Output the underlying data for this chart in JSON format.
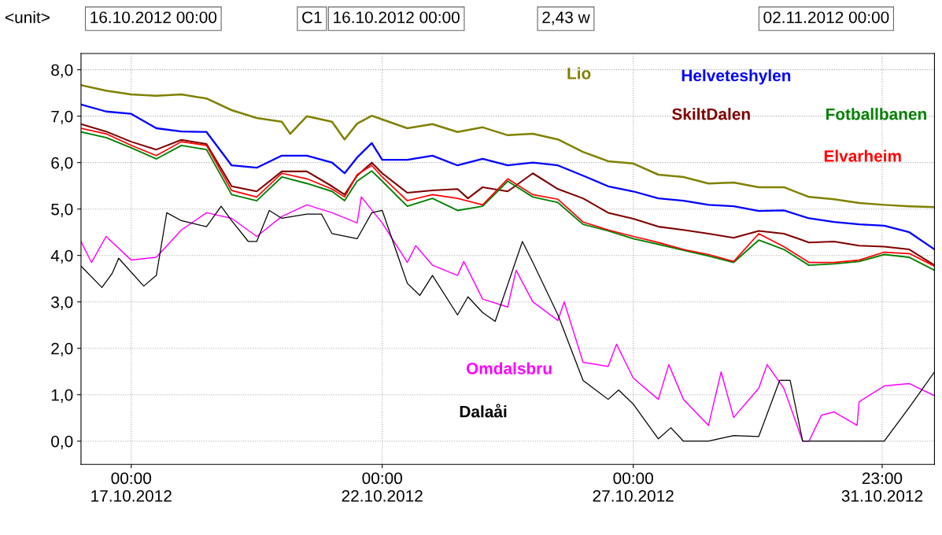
{
  "chart_data": {
    "type": "line",
    "ylabel": "<unit>",
    "annotations": [
      "16.10.2012 00:00",
      "C1",
      "16.10.2012 00:00",
      "2,43 w",
      "02.11.2012 00:00"
    ],
    "xlim": [
      "2012-10-16T00:00",
      "2012-11-02T00:00"
    ],
    "xticks": [
      {
        "value": "2012-10-17T00:00",
        "label": "00:00\n17.10.2012"
      },
      {
        "value": "2012-10-22T00:00",
        "label": "00:00\n22.10.2012"
      },
      {
        "value": "2012-10-27T00:00",
        "label": "00:00\n27.10.2012"
      },
      {
        "value": "2012-10-31T23:00",
        "label": "23:00\n31.10.2012"
      }
    ],
    "ylim": [
      -0.5,
      8.35
    ],
    "yticks": [
      {
        "value": 0,
        "label": "0,0"
      },
      {
        "value": 1,
        "label": "1,0"
      },
      {
        "value": 2,
        "label": "2,0"
      },
      {
        "value": 3,
        "label": "3,0"
      },
      {
        "value": 4,
        "label": "4,0"
      },
      {
        "value": 5,
        "label": "5,0"
      },
      {
        "value": 6,
        "label": "6,0"
      },
      {
        "value": 7,
        "label": "7,0"
      },
      {
        "value": 8,
        "label": "8,0"
      }
    ],
    "grid": true,
    "legend": false,
    "series": [
      {
        "name": "Lio",
        "color": "#808000",
        "x": [
          "2012-10-16T00:00",
          "2012-10-16T12:00",
          "2012-10-17T00:00",
          "2012-10-17T12:00",
          "2012-10-18T00:00",
          "2012-10-18T12:00",
          "2012-10-19T00:00",
          "2012-10-19T12:00",
          "2012-10-20T00:00",
          "2012-10-20T04:00",
          "2012-10-20T12:00",
          "2012-10-21T00:00",
          "2012-10-21T06:00",
          "2012-10-21T12:00",
          "2012-10-21T19:00",
          "2012-10-22T00:00",
          "2012-10-22T12:00",
          "2012-10-23T00:00",
          "2012-10-23T12:00",
          "2012-10-24T00:00",
          "2012-10-24T12:00",
          "2012-10-25T00:00",
          "2012-10-25T12:00",
          "2012-10-26T00:00",
          "2012-10-26T12:00",
          "2012-10-27T00:00",
          "2012-10-27T12:00",
          "2012-10-28T00:00",
          "2012-10-28T12:00",
          "2012-10-29T00:00",
          "2012-10-29T12:00",
          "2012-10-30T00:00",
          "2012-10-30T12:00",
          "2012-10-31T00:00",
          "2012-10-31T12:00",
          "2012-11-01T00:00",
          "2012-11-01T12:00",
          "2012-11-02T00:00"
        ],
        "values": [
          7.67,
          7.55,
          7.47,
          7.44,
          7.47,
          7.38,
          7.13,
          6.96,
          6.88,
          6.62,
          7.0,
          6.88,
          6.5,
          6.84,
          7.01,
          6.93,
          6.74,
          6.83,
          6.66,
          6.76,
          6.59,
          6.62,
          6.5,
          6.23,
          6.03,
          5.98,
          5.74,
          5.69,
          5.55,
          5.57,
          5.47,
          5.47,
          5.26,
          5.21,
          5.13,
          5.09,
          5.06,
          5.04
        ]
      },
      {
        "name": "Helveteshylen",
        "color": "#0000ff",
        "x": [
          "2012-10-16T00:00",
          "2012-10-16T12:00",
          "2012-10-17T00:00",
          "2012-10-17T12:00",
          "2012-10-18T00:00",
          "2012-10-18T12:00",
          "2012-10-19T00:00",
          "2012-10-19T12:00",
          "2012-10-20T00:00",
          "2012-10-20T12:00",
          "2012-10-21T00:00",
          "2012-10-21T06:00",
          "2012-10-21T12:00",
          "2012-10-21T19:00",
          "2012-10-22T00:00",
          "2012-10-22T12:00",
          "2012-10-23T00:00",
          "2012-10-23T12:00",
          "2012-10-24T00:00",
          "2012-10-24T12:00",
          "2012-10-25T00:00",
          "2012-10-25T12:00",
          "2012-10-26T00:00",
          "2012-10-26T12:00",
          "2012-10-27T00:00",
          "2012-10-27T12:00",
          "2012-10-28T00:00",
          "2012-10-28T12:00",
          "2012-10-29T00:00",
          "2012-10-29T12:00",
          "2012-10-30T00:00",
          "2012-10-30T12:00",
          "2012-10-31T00:00",
          "2012-10-31T12:00",
          "2012-11-01T00:00",
          "2012-11-01T12:00",
          "2012-11-02T00:00"
        ],
        "values": [
          7.25,
          7.1,
          7.05,
          6.74,
          6.67,
          6.66,
          5.94,
          5.89,
          6.15,
          6.15,
          6.0,
          5.77,
          6.11,
          6.42,
          6.06,
          6.06,
          6.15,
          5.94,
          6.08,
          5.94,
          6.0,
          5.94,
          5.72,
          5.49,
          5.38,
          5.23,
          5.18,
          5.09,
          5.06,
          4.96,
          4.97,
          4.8,
          4.72,
          4.67,
          4.64,
          4.5,
          4.13
        ]
      },
      {
        "name": "SkiltDalen",
        "color": "#800000",
        "x": [
          "2012-10-16T00:00",
          "2012-10-16T12:00",
          "2012-10-17T00:00",
          "2012-10-17T12:00",
          "2012-10-18T00:00",
          "2012-10-18T12:00",
          "2012-10-19T00:00",
          "2012-10-19T12:00",
          "2012-10-20T00:00",
          "2012-10-20T12:00",
          "2012-10-21T00:00",
          "2012-10-21T06:00",
          "2012-10-21T12:00",
          "2012-10-21T19:00",
          "2012-10-22T00:00",
          "2012-10-22T12:00",
          "2012-10-23T00:00",
          "2012-10-23T12:00",
          "2012-10-23T17:00",
          "2012-10-24T00:00",
          "2012-10-24T12:00",
          "2012-10-25T00:00",
          "2012-10-25T12:00",
          "2012-10-26T00:00",
          "2012-10-26T12:00",
          "2012-10-27T00:00",
          "2012-10-27T12:00",
          "2012-10-28T00:00",
          "2012-10-28T12:00",
          "2012-10-29T00:00",
          "2012-10-29T12:00",
          "2012-10-30T00:00",
          "2012-10-30T12:00",
          "2012-10-31T00:00",
          "2012-10-31T12:00",
          "2012-11-01T00:00",
          "2012-11-01T12:00",
          "2012-11-02T00:00"
        ],
        "values": [
          6.83,
          6.67,
          6.45,
          6.28,
          6.49,
          6.4,
          5.49,
          5.38,
          5.81,
          5.81,
          5.49,
          5.31,
          5.72,
          6.0,
          5.77,
          5.35,
          5.4,
          5.43,
          5.23,
          5.47,
          5.38,
          5.77,
          5.43,
          5.23,
          4.92,
          4.79,
          4.62,
          4.55,
          4.47,
          4.38,
          4.53,
          4.47,
          4.28,
          4.3,
          4.21,
          4.19,
          4.13,
          3.79
        ]
      },
      {
        "name": "Fotballbanen",
        "color": "#008000",
        "x": [
          "2012-10-16T00:00",
          "2012-10-16T12:00",
          "2012-10-17T00:00",
          "2012-10-17T12:00",
          "2012-10-18T00:00",
          "2012-10-18T12:00",
          "2012-10-19T00:00",
          "2012-10-19T12:00",
          "2012-10-20T00:00",
          "2012-10-20T12:00",
          "2012-10-21T00:00",
          "2012-10-21T06:00",
          "2012-10-21T12:00",
          "2012-10-21T19:00",
          "2012-10-22T00:00",
          "2012-10-22T12:00",
          "2012-10-23T00:00",
          "2012-10-23T12:00",
          "2012-10-24T00:00",
          "2012-10-24T12:00",
          "2012-10-25T00:00",
          "2012-10-25T12:00",
          "2012-10-26T00:00",
          "2012-10-26T12:00",
          "2012-10-27T00:00",
          "2012-10-27T12:00",
          "2012-10-28T00:00",
          "2012-10-28T12:00",
          "2012-10-29T00:00",
          "2012-10-29T12:00",
          "2012-10-30T00:00",
          "2012-10-30T12:00",
          "2012-10-31T00:00",
          "2012-10-31T12:00",
          "2012-11-01T00:00",
          "2012-11-01T12:00",
          "2012-11-02T00:00"
        ],
        "values": [
          6.66,
          6.54,
          6.32,
          6.08,
          6.37,
          6.28,
          5.31,
          5.18,
          5.69,
          5.55,
          5.38,
          5.18,
          5.6,
          5.82,
          5.6,
          5.06,
          5.23,
          4.97,
          5.06,
          5.6,
          5.26,
          5.14,
          4.67,
          4.53,
          4.36,
          4.24,
          4.11,
          3.99,
          3.85,
          4.33,
          4.13,
          3.79,
          3.82,
          3.87,
          4.02,
          3.96,
          3.68
        ]
      },
      {
        "name": "Elvarheim",
        "color": "#ff0000",
        "x": [
          "2012-10-16T00:00",
          "2012-10-16T12:00",
          "2012-10-17T00:00",
          "2012-10-17T12:00",
          "2012-10-18T00:00",
          "2012-10-18T12:00",
          "2012-10-19T00:00",
          "2012-10-19T12:00",
          "2012-10-20T00:00",
          "2012-10-20T12:00",
          "2012-10-21T00:00",
          "2012-10-21T06:00",
          "2012-10-21T12:00",
          "2012-10-21T19:00",
          "2012-10-22T00:00",
          "2012-10-22T12:00",
          "2012-10-23T00:00",
          "2012-10-23T12:00",
          "2012-10-24T00:00",
          "2012-10-24T12:00",
          "2012-10-25T00:00",
          "2012-10-25T12:00",
          "2012-10-26T00:00",
          "2012-10-26T12:00",
          "2012-10-27T00:00",
          "2012-10-27T12:00",
          "2012-10-28T00:00",
          "2012-10-28T12:00",
          "2012-10-29T00:00",
          "2012-10-29T12:00",
          "2012-10-30T00:00",
          "2012-10-30T12:00",
          "2012-10-31T00:00",
          "2012-10-31T12:00",
          "2012-11-01T00:00",
          "2012-11-01T12:00",
          "2012-11-02T00:00"
        ],
        "values": [
          6.74,
          6.62,
          6.37,
          6.15,
          6.45,
          6.37,
          5.4,
          5.26,
          5.77,
          5.65,
          5.43,
          5.26,
          5.74,
          5.94,
          5.69,
          5.18,
          5.31,
          5.23,
          5.09,
          5.65,
          5.31,
          5.21,
          4.72,
          4.55,
          4.41,
          4.28,
          4.13,
          4.02,
          3.87,
          4.47,
          4.19,
          3.85,
          3.85,
          3.9,
          4.07,
          4.04,
          3.77
        ]
      },
      {
        "name": "Omdalsbru",
        "color": "#ff00ff",
        "x": [
          "2012-10-16T00:00",
          "2012-10-16T05:00",
          "2012-10-16T12:00",
          "2012-10-17T00:00",
          "2012-10-17T12:00",
          "2012-10-18T00:00",
          "2012-10-18T12:00",
          "2012-10-19T00:00",
          "2012-10-19T12:00",
          "2012-10-20T00:00",
          "2012-10-20T12:00",
          "2012-10-21T00:00",
          "2012-10-21T12:00",
          "2012-10-21T14:00",
          "2012-10-22T00:00",
          "2012-10-22T12:00",
          "2012-10-22T16:00",
          "2012-10-23T00:00",
          "2012-10-23T12:00",
          "2012-10-23T15:00",
          "2012-10-24T00:00",
          "2012-10-24T12:00",
          "2012-10-24T16:00",
          "2012-10-25T00:00",
          "2012-10-25T12:00",
          "2012-10-25T15:00",
          "2012-10-26T00:00",
          "2012-10-26T12:00",
          "2012-10-26T16:00",
          "2012-10-27T00:00",
          "2012-10-27T12:00",
          "2012-10-27T17:00",
          "2012-10-28T00:00",
          "2012-10-28T12:00",
          "2012-10-28T18:00",
          "2012-10-29T00:00",
          "2012-10-29T12:00",
          "2012-10-29T16:00",
          "2012-10-30T00:00",
          "2012-10-30T09:00",
          "2012-10-30T12:00",
          "2012-10-30T18:00",
          "2012-10-31T00:00",
          "2012-10-31T11:00",
          "2012-10-31T12:00",
          "2012-11-01T00:00",
          "2012-11-01T12:00",
          "2012-11-02T00:00"
        ],
        "values": [
          4.3,
          3.85,
          4.41,
          3.9,
          3.96,
          4.55,
          4.92,
          4.8,
          4.41,
          4.84,
          5.09,
          4.92,
          4.7,
          5.26,
          4.7,
          3.85,
          4.21,
          3.79,
          3.57,
          3.87,
          3.06,
          2.89,
          3.68,
          3.0,
          2.6,
          3.0,
          1.7,
          1.61,
          2.09,
          1.36,
          0.9,
          1.65,
          0.9,
          0.34,
          1.49,
          0.51,
          1.14,
          1.65,
          1.14,
          0.0,
          0.0,
          0.56,
          0.63,
          0.34,
          0.85,
          1.19,
          1.24,
          0.98
        ]
      },
      {
        "name": "Dalaåi",
        "color": "#000000",
        "x": [
          "2012-10-16T00:00",
          "2012-10-16T10:00",
          "2012-10-16T15:00",
          "2012-10-16T18:00",
          "2012-10-17T06:00",
          "2012-10-17T12:00",
          "2012-10-17T17:00",
          "2012-10-18T00:00",
          "2012-10-18T12:00",
          "2012-10-18T19:00",
          "2012-10-19T00:00",
          "2012-10-19T08:00",
          "2012-10-19T12:00",
          "2012-10-19T18:00",
          "2012-10-20T00:00",
          "2012-10-20T12:00",
          "2012-10-20T19:00",
          "2012-10-21T00:00",
          "2012-10-21T12:00",
          "2012-10-21T19:00",
          "2012-10-22T00:00",
          "2012-10-22T12:00",
          "2012-10-22T18:00",
          "2012-10-23T00:00",
          "2012-10-23T12:00",
          "2012-10-23T17:00",
          "2012-10-24T00:00",
          "2012-10-24T06:00",
          "2012-10-24T19:00",
          "2012-10-25T00:00",
          "2012-10-25T12:00",
          "2012-10-26T00:00",
          "2012-10-26T12:00",
          "2012-10-26T17:00",
          "2012-10-27T00:00",
          "2012-10-27T12:00",
          "2012-10-27T18:00",
          "2012-10-28T00:00",
          "2012-10-28T12:00",
          "2012-10-29T00:00",
          "2012-10-29T12:00",
          "2012-10-29T22:00",
          "2012-10-30T03:00",
          "2012-10-30T09:00",
          "2012-10-31T00:00",
          "2012-10-31T12:00",
          "2012-11-01T00:00",
          "2012-11-01T12:00",
          "2012-11-02T00:00"
        ],
        "values": [
          3.77,
          3.31,
          3.62,
          3.94,
          3.34,
          3.57,
          4.92,
          4.75,
          4.62,
          5.06,
          4.75,
          4.3,
          4.3,
          4.97,
          4.8,
          4.89,
          4.89,
          4.47,
          4.36,
          4.92,
          4.97,
          3.4,
          3.14,
          3.57,
          2.72,
          3.11,
          2.77,
          2.58,
          4.3,
          3.85,
          2.72,
          1.31,
          0.9,
          1.1,
          0.8,
          0.05,
          0.29,
          0.0,
          0.0,
          0.12,
          0.1,
          1.31,
          1.31,
          0.0,
          0.0,
          0.0,
          0.0,
          0.73,
          1.49
        ]
      }
    ]
  }
}
